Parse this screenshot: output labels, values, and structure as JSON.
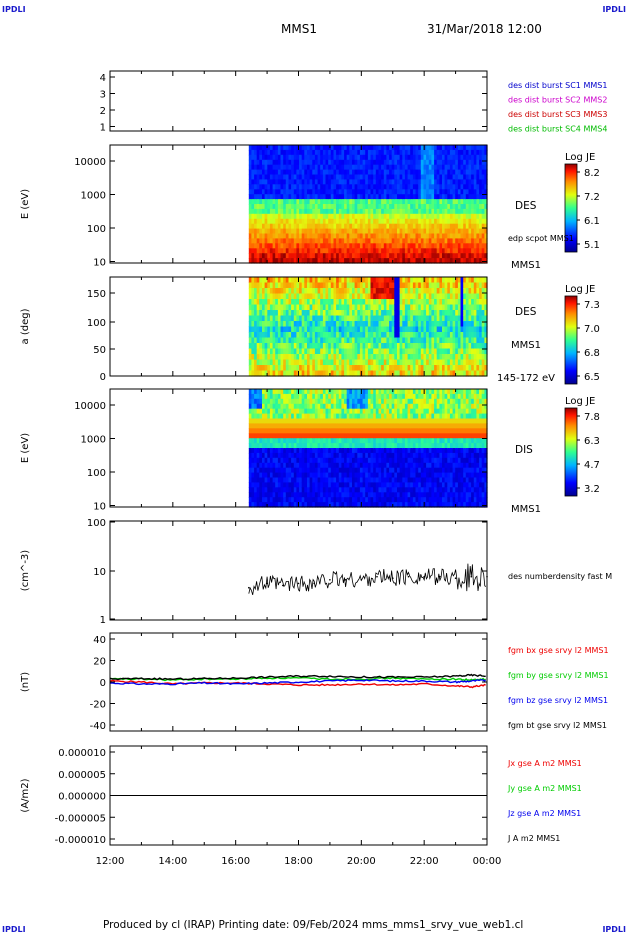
{
  "corner_tl": "IPDLI",
  "corner_tr": "IPDLI",
  "corner_bl": "IPDLI",
  "corner_br": "IPDLI",
  "header": {
    "spacecraft": "MMS1",
    "datetime": "31/Mar/2018 12:00"
  },
  "footer": "Produced by cl (IRAP)   Printing date: 09/Feb/2024   mms_mms1_srvy_vue_web1.cl",
  "colors": {
    "mms1": "#0000cc",
    "mms2": "#cc00cc",
    "mms3": "#cc0000",
    "mms4": "#00bb00",
    "bx": "#ee0000",
    "by": "#00cc00",
    "bz": "#0000ee",
    "bt": "#000000"
  },
  "chart_data": [
    {
      "type": "table",
      "id": "availability",
      "ylabel": "",
      "yticks": [
        "4",
        "3",
        "2",
        "1"
      ],
      "legend": [
        {
          "label": "des dist burst SC1 MMS1",
          "color": "#0000cc"
        },
        {
          "label": "des dist burst SC2 MMS2",
          "color": "#cc00cc"
        },
        {
          "label": "des dist burst SC3 MMS3",
          "color": "#cc0000"
        },
        {
          "label": "des dist burst SC4 MMS4",
          "color": "#00bb00"
        }
      ]
    },
    {
      "type": "heatmap",
      "id": "des-energy",
      "ylabel": "E (eV)",
      "yticks": [
        "10000",
        "1000",
        "100",
        "10"
      ],
      "data_start": "16:25",
      "label": "DES",
      "side_label": "edp scpot MMS1",
      "footer_label": "MMS1",
      "colorbar": {
        "title": "Log JE",
        "ticks": [
          "8.2",
          "7.2",
          "6.1",
          "5.1"
        ]
      }
    },
    {
      "type": "heatmap",
      "id": "des-pitch",
      "ylabel": "a (deg)",
      "yticks": [
        "150",
        "100",
        "50",
        "0"
      ],
      "data_start": "16:25",
      "label": "DES",
      "side_label": "MMS1",
      "footer_label": "145-172 eV",
      "colorbar": {
        "title": "Log JE",
        "ticks": [
          "7.3",
          "7.0",
          "6.8",
          "6.5"
        ]
      }
    },
    {
      "type": "heatmap",
      "id": "dis-energy",
      "ylabel": "E (eV)",
      "yticks": [
        "10000",
        "1000",
        "100",
        "10"
      ],
      "data_start": "16:25",
      "label": "DIS",
      "footer_label": "MMS1",
      "colorbar": {
        "title": "Log JE",
        "ticks": [
          "7.8",
          "6.3",
          "4.7",
          "3.2"
        ]
      }
    },
    {
      "type": "line",
      "id": "density",
      "ylabel": "(cm^-3)",
      "yticks": [
        "100",
        "10",
        "1"
      ],
      "ylim": [
        1,
        100
      ],
      "yscale": "log",
      "legend": [
        {
          "label": "des numberdensity fast M",
          "color": "#000000"
        }
      ],
      "x": [
        "16:25",
        "17:00",
        "17:30",
        "18:00",
        "18:30",
        "19:00",
        "19:30",
        "20:00",
        "20:30",
        "21:00",
        "21:30",
        "22:00",
        "22:30",
        "23:00",
        "23:30",
        "00:00"
      ],
      "values": [
        4.5,
        5.5,
        5,
        5.5,
        5.5,
        6.5,
        6.5,
        6.5,
        7.5,
        7,
        7.5,
        7.5,
        7.5,
        7,
        7.5,
        7.5
      ]
    },
    {
      "type": "line",
      "id": "fgm",
      "ylabel": "(nT)",
      "yticks": [
        "40",
        "20",
        "0",
        "-20",
        "-40"
      ],
      "ylim": [
        -50,
        50
      ],
      "x": [
        "12:00",
        "13:00",
        "14:00",
        "15:00",
        "16:00",
        "17:00",
        "18:00",
        "19:00",
        "20:00",
        "21:00",
        "22:00",
        "23:00",
        "23:30",
        "00:00"
      ],
      "series": [
        {
          "name": "fgm bx gse srvy l2 MMS1",
          "color": "#ee0000",
          "values": [
            1,
            0,
            -2,
            -1,
            -1,
            -2,
            -3,
            -3,
            -2,
            -3,
            -2,
            -4,
            -5,
            -3
          ]
        },
        {
          "name": "fgm by gse srvy l2 MMS1",
          "color": "#00cc00",
          "values": [
            3,
            3,
            2,
            3,
            3,
            4,
            4,
            3,
            3,
            4,
            3,
            3,
            2,
            3
          ]
        },
        {
          "name": "fgm bz gse srvy l2 MMS1",
          "color": "#0000ee",
          "values": [
            -1,
            -2,
            -2,
            -1,
            -2,
            -1,
            0,
            1,
            2,
            1,
            1,
            0,
            1,
            2
          ]
        },
        {
          "name": "fgm bt gse srvy l2 MMS1",
          "color": "#000000",
          "values": [
            3,
            3.5,
            3,
            3.5,
            4,
            5,
            6,
            6,
            5,
            5,
            5,
            6,
            7,
            6
          ]
        }
      ]
    },
    {
      "type": "line",
      "id": "current",
      "ylabel": "(A/m2)",
      "yticks": [
        "0.000010",
        "0.000005",
        "0.000000",
        "-0.000005",
        "-0.000010"
      ],
      "ylim": [
        -1e-05,
        1e-05
      ],
      "xticks": [
        "12:00",
        "14:00",
        "16:00",
        "18:00",
        "20:00",
        "22:00",
        "00:00"
      ],
      "x": [
        "12:00",
        "16:00",
        "20:00",
        "00:00"
      ],
      "series": [
        {
          "name": "Jx gse A m2 MMS1",
          "color": "#ee0000",
          "values": [
            0,
            0,
            0,
            0
          ]
        },
        {
          "name": "Jy gse A m2 MMS1",
          "color": "#00cc00",
          "values": [
            0,
            0,
            0,
            0
          ]
        },
        {
          "name": "Jz gse A m2 MMS1",
          "color": "#0000ee",
          "values": [
            0,
            0,
            0,
            0
          ]
        },
        {
          "name": "J A m2 MMS1",
          "color": "#000000",
          "values": [
            0,
            0,
            0,
            0
          ]
        }
      ]
    }
  ]
}
